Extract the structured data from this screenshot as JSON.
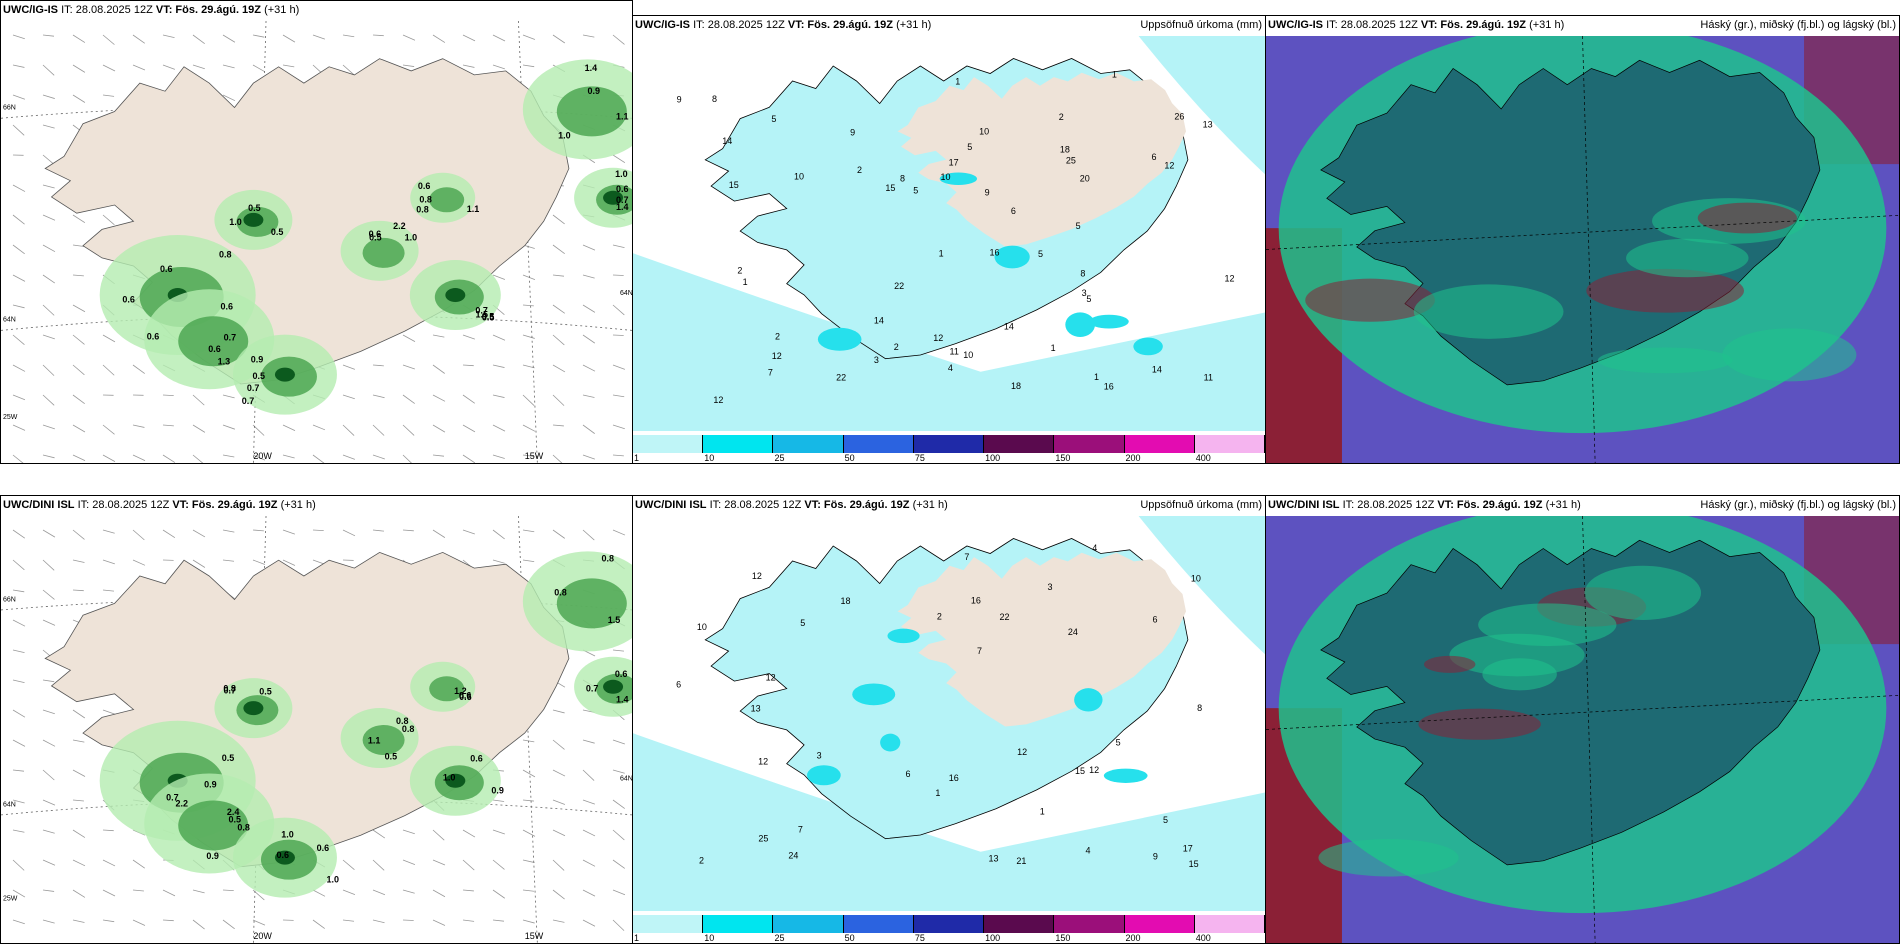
{
  "panels": [
    {
      "model": "UWC/IG-IS",
      "it": "IT: 28.08.2025 12Z",
      "vt_label": "VT:",
      "vt": "Fös. 29.ágú. 19Z",
      "lead": "(+31 h)",
      "product": "",
      "kind": "precip-rate",
      "lon_labels": [
        "20W",
        "15W"
      ],
      "lat_labels": [
        "66N",
        "64N",
        "25W",
        "64N"
      ]
    },
    {
      "model": "UWC/IG-IS",
      "it": "IT: 28.08.2025 12Z",
      "vt_label": "VT:",
      "vt": "Fös. 29.ágú. 19Z",
      "lead": "(+31 h)",
      "product": "Uppsöfnuð úrkoma (mm)",
      "kind": "accum"
    },
    {
      "model": "UWC/IG-IS",
      "it": "IT: 28.08.2025 12Z",
      "vt_label": "VT:",
      "vt": "Fös. 29.ágú. 19Z",
      "lead": "(+31 h)",
      "product": "Háský (gr.), miðský (fj.bl.) og lágský (bl.)",
      "kind": "clouds"
    },
    {
      "model": "UWC/DINI ISL",
      "it": "IT: 28.08.2025 12Z",
      "vt_label": "VT:",
      "vt": "Fös. 29.ágú. 19Z",
      "lead": "(+31 h)",
      "product": "",
      "kind": "precip-rate",
      "lon_labels": [
        "20W",
        "15W"
      ],
      "lat_labels": [
        "66N",
        "64N",
        "25W",
        "64N"
      ]
    },
    {
      "model": "UWC/DINI ISL",
      "it": "IT: 28.08.2025 12Z",
      "vt_label": "VT:",
      "vt": "Fös. 29.ágú. 19Z",
      "lead": "(+31 h)",
      "product": "Uppsöfnuð úrkoma (mm)",
      "kind": "accum"
    },
    {
      "model": "UWC/DINI ISL",
      "it": "IT: 28.08.2025 12Z",
      "vt_label": "VT:",
      "vt": "Fös. 29.ágú. 19Z",
      "lead": "(+31 h)",
      "product": "Háský (gr.), miðský (fj.bl.) og lágský (bl.)",
      "kind": "clouds"
    }
  ],
  "colorbar": {
    "ticks": [
      "1",
      "10",
      "25",
      "50",
      "75",
      "100",
      "150",
      "200",
      "400"
    ],
    "colors": [
      "#bff5f7",
      "#00e5ef",
      "#16b8e6",
      "#2b63e0",
      "#1f2aa8",
      "#5a0a4e",
      "#9b0f7a",
      "#e30cb1",
      "#f5b4ef"
    ]
  },
  "precip_values_top": [
    "0.6",
    "0.6",
    "0.7",
    "0.5",
    "0.7",
    "0.9",
    "1.0",
    "0.8",
    "0.5",
    "0.6",
    "0.6",
    "0.9",
    "1.0",
    "0.5",
    "1.1",
    "0.6",
    "0.8",
    "1.0",
    "0.6",
    "0.7",
    "0.5",
    "0.6",
    "0.5",
    "1.0",
    "0.7",
    "0.6",
    "0.5",
    "0.8",
    "1.3",
    "0.7",
    "2.2",
    "1.5",
    "1.4",
    "1.4",
    "1.1"
  ],
  "precip_values_bottom": [
    "0.5",
    "0.8",
    "0.6",
    "1.1",
    "1.0",
    "0.8",
    "0.6",
    "0.6",
    "0.8",
    "0.5",
    "0.9",
    "1.0",
    "0.5",
    "0.6",
    "0.8",
    "0.7",
    "0.6",
    "0.5",
    "0.9",
    "0.7",
    "1.0",
    "0.8",
    "0.9",
    "1.5",
    "1.4",
    "1.2",
    "0.7",
    "2.2",
    "2.4",
    "0.6",
    "0.8"
  ],
  "accum_values_top": [
    "2",
    "1",
    "1",
    "2",
    "3",
    "1",
    "1",
    "13",
    "9",
    "7",
    "4",
    "5",
    "5",
    "2",
    "8",
    "5",
    "12",
    "14",
    "14",
    "22",
    "10",
    "12",
    "16",
    "18",
    "11",
    "20",
    "15",
    "12",
    "10",
    "14",
    "9",
    "3",
    "5",
    "15",
    "17",
    "10",
    "12",
    "11",
    "14",
    "10",
    "8",
    "1",
    "2",
    "5",
    "6",
    "5",
    "6",
    "8",
    "9",
    "18",
    "25",
    "26",
    "16",
    "2",
    "1",
    "12",
    "22"
  ],
  "accum_values_bottom": [
    "17",
    "16",
    "25",
    "12",
    "7",
    "4",
    "2",
    "1",
    "13",
    "10",
    "24",
    "15",
    "13",
    "7",
    "12",
    "6",
    "8",
    "12",
    "6",
    "5",
    "21",
    "10",
    "6",
    "16",
    "5",
    "12",
    "22",
    "24",
    "18",
    "7",
    "9",
    "5",
    "4",
    "3",
    "3",
    "1",
    "2",
    "15",
    "12"
  ],
  "colors": {
    "land": "#eee3d8",
    "ocean": "#ffffff",
    "precip_light": "#b4ecb0",
    "precip_mid": "#4da752",
    "precip_dark": "#0c5a1e",
    "accum_light": "#b5f3f7",
    "accum_mid": "#26e0ec",
    "cloud_teal": "#1e6a73",
    "cloud_green": "#1fc28d",
    "cloud_purple": "#5d52c0",
    "cloud_maroon": "#8b2036"
  }
}
